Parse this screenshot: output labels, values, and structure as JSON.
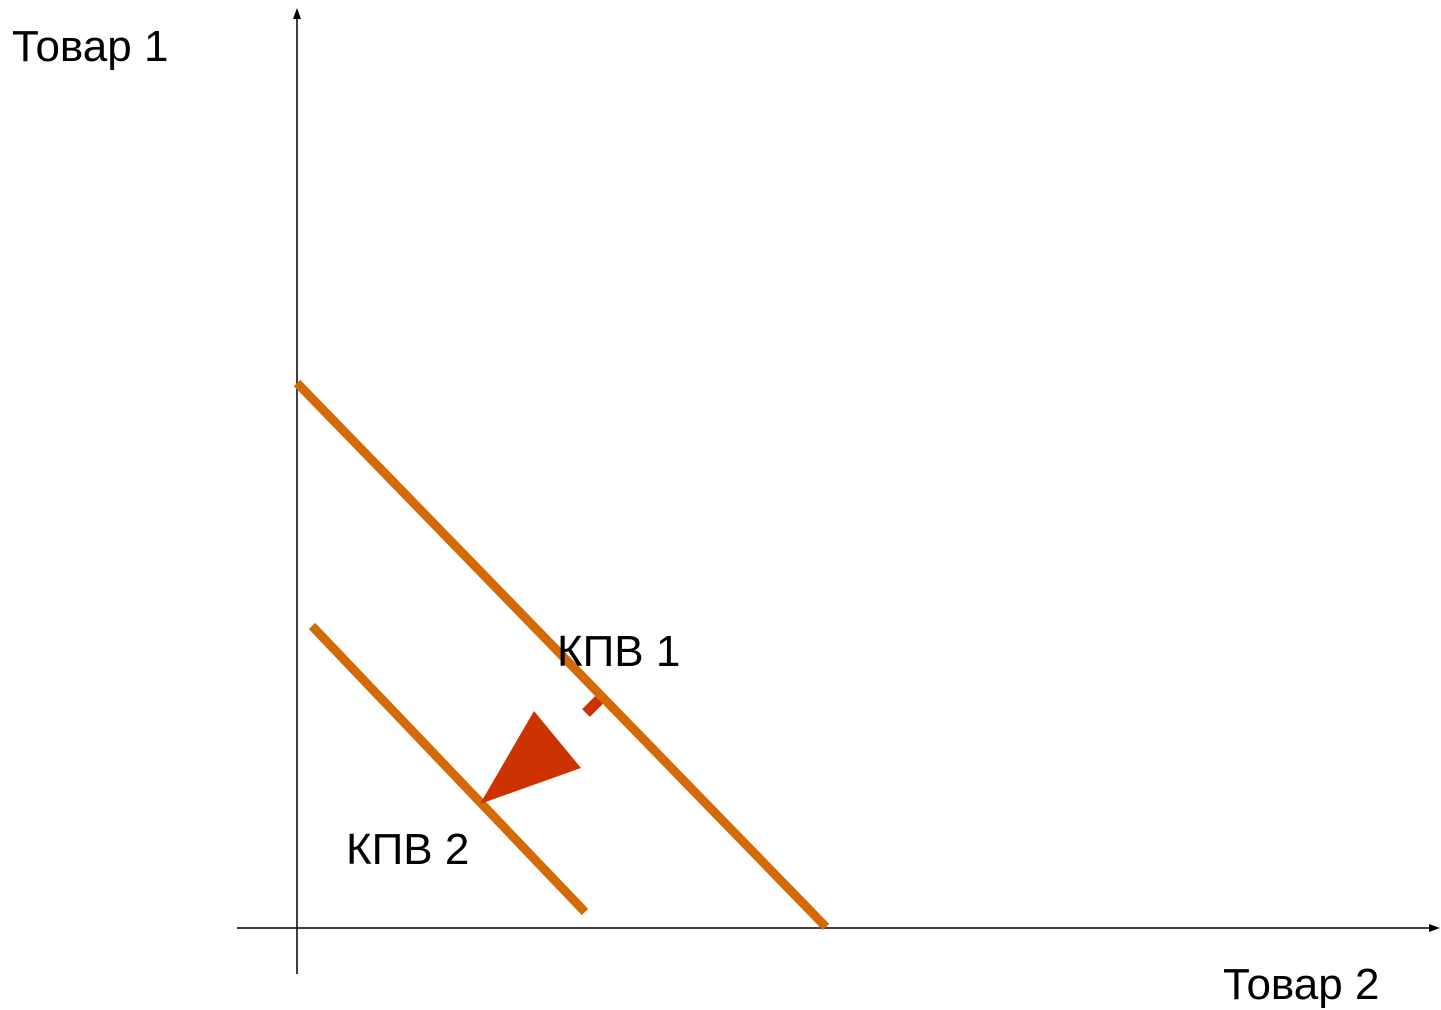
{
  "diagram": {
    "y_axis_label": "Товар 1",
    "x_axis_label": "Товар 2",
    "curves": [
      {
        "label": "КПВ 1"
      },
      {
        "label": "КПВ 2"
      }
    ],
    "arrow_meaning": "shift of КПВ 1 inward to КПВ 2"
  },
  "colors": {
    "axis": "#000000",
    "curve": "#D46A06",
    "arrow": "#CC3300",
    "background": "#ffffff"
  }
}
